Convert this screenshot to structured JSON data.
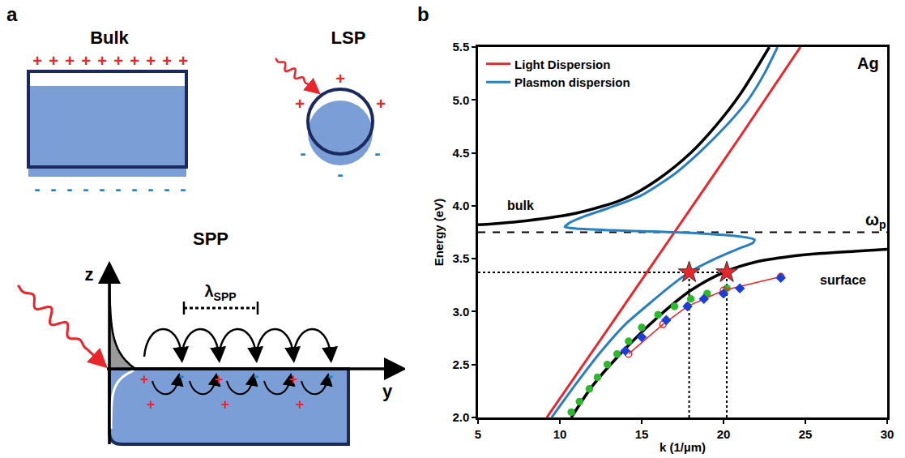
{
  "diagram": {
    "panel_label": "a",
    "bulk": {
      "title": "Bulk"
    },
    "lsp": {
      "title": "LSP"
    },
    "spp": {
      "title": "SPP",
      "z_axis": "z",
      "y_axis": "y",
      "wavelength": {
        "symbol": "λ",
        "subscript": "SPP"
      }
    },
    "charges": {
      "positive": "+",
      "negative": "-"
    }
  },
  "chart_data": {
    "type": "line",
    "panel_label": "b",
    "xlabel": "k (1/µm)",
    "ylabel": "Energy (eV)",
    "xlim": [
      5,
      30
    ],
    "xticks": [
      5,
      10,
      15,
      20,
      25,
      30
    ],
    "ylim": [
      2,
      5.5
    ],
    "yticks": [
      {
        "value": 2,
        "label": "2.0"
      },
      2.5,
      {
        "value": 3,
        "label": "3.0"
      },
      3.5,
      {
        "value": 4,
        "label": "4.0"
      },
      4.5,
      {
        "value": 5,
        "label": "5.0"
      },
      5.5
    ],
    "grid": false,
    "legend": "upper left",
    "annotations": [
      {
        "text": "Ag",
        "x": 29.6,
        "y": 5.45
      }
    ],
    "series": [
      {
        "name": "Light Dispersion",
        "color": "#e8262b",
        "line_style": "solid",
        "x": [
          9.2,
          13,
          17,
          21,
          24.7
        ],
        "y": [
          2.0,
          2.85,
          3.75,
          4.65,
          5.5
        ]
      },
      {
        "name": "Plasmon dispersion",
        "color": "#2a7fc0",
        "line_style": "solid",
        "x": [
          9.5,
          11,
          12.5,
          14,
          15.5,
          17,
          18,
          19.5,
          21,
          21.8,
          21.9,
          21,
          19,
          16,
          13,
          11,
          10.3,
          10.6,
          11.5,
          13,
          15,
          17,
          18.5,
          20,
          21.5,
          22.5,
          23.3
        ],
        "y": [
          2.0,
          2.32,
          2.62,
          2.88,
          3.08,
          3.27,
          3.38,
          3.5,
          3.6,
          3.65,
          3.68,
          3.71,
          3.735,
          3.755,
          3.77,
          3.785,
          3.8,
          3.84,
          3.9,
          3.98,
          4.1,
          4.3,
          4.5,
          4.73,
          5.0,
          5.25,
          5.5
        ]
      }
    ],
    "curves": [
      {
        "label": "bulk",
        "color": "#000000",
        "label_x": 7.6,
        "label_y": 4.0,
        "x": [
          5,
          8,
          11,
          14,
          16,
          18,
          19.5,
          21,
          22.8
        ],
        "y": [
          3.82,
          3.86,
          3.93,
          4.07,
          4.25,
          4.5,
          4.75,
          5.05,
          5.5
        ]
      },
      {
        "label": "surface",
        "color": "#000000",
        "label_x": 27.3,
        "label_y": 3.3,
        "x": [
          10.7,
          12,
          14,
          16,
          18,
          20,
          22,
          24,
          26,
          28,
          30
        ],
        "y": [
          2.0,
          2.3,
          2.65,
          2.95,
          3.2,
          3.37,
          3.47,
          3.52,
          3.55,
          3.57,
          3.59
        ]
      }
    ],
    "measurements": [
      {
        "color": "#2db82d",
        "marker": "circle",
        "line_style": "none",
        "x": [
          10.7,
          11.2,
          11.8,
          12.3,
          12.9,
          13.5,
          14.2,
          15,
          16,
          17,
          18,
          19,
          20.2
        ],
        "y": [
          2.05,
          2.15,
          2.27,
          2.38,
          2.5,
          2.6,
          2.72,
          2.85,
          2.97,
          3.05,
          3.12,
          3.17,
          3.22
        ]
      },
      {
        "color": "#e8262b",
        "marker": "circle-open",
        "line_style": "solid",
        "x": [
          14.2,
          16.3,
          17.8,
          20,
          23.5
        ],
        "y": [
          2.6,
          2.88,
          3.05,
          3.2,
          3.33
        ]
      },
      {
        "color": "#1a3fd6",
        "marker": "diamond",
        "line_style": "none",
        "x": [
          14,
          15,
          16.5,
          17.8,
          18.8,
          20,
          21,
          23.5
        ],
        "y": [
          2.63,
          2.76,
          2.92,
          3.05,
          3.12,
          3.17,
          3.22,
          3.32
        ]
      }
    ],
    "highlights": {
      "x": [
        17.9,
        20.2
      ],
      "y": [
        3.37,
        3.37
      ],
      "color": "#e8262b",
      "marker": "star",
      "line_style": "dot"
    },
    "reference_lines": [
      {
        "y": 3.75,
        "label": "ω",
        "label_subscript": "p",
        "label_x": 29.3,
        "line_style": "dash",
        "color": "#000000"
      }
    ]
  }
}
